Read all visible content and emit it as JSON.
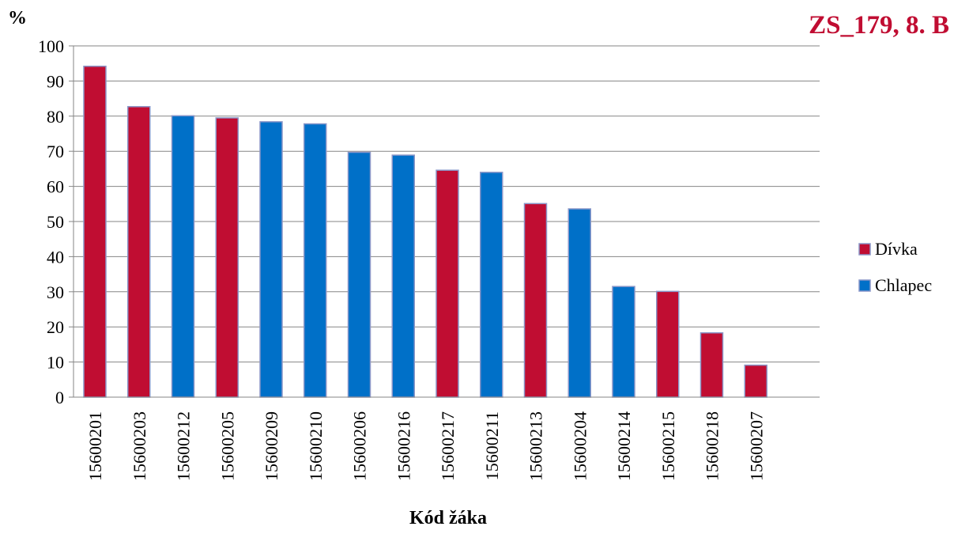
{
  "chart_data": {
    "type": "bar",
    "title": "ZS_179, 8. B",
    "xlabel": "Kód žáka",
    "ylabel": "%",
    "ylim": [
      0,
      100
    ],
    "yticks": [
      0,
      10,
      20,
      30,
      40,
      50,
      60,
      70,
      80,
      90,
      100
    ],
    "grid": true,
    "legend_position": "right",
    "categories": [
      "15600201",
      "15600203",
      "15600212",
      "15600205",
      "15600209",
      "15600210",
      "15600206",
      "15600216",
      "15600217",
      "15600211",
      "15600213",
      "15600204",
      "15600214",
      "15600215",
      "15600218",
      "15600207"
    ],
    "values": [
      94.2,
      82.7,
      80.1,
      79.5,
      78.4,
      77.8,
      69.7,
      68.9,
      64.6,
      64.0,
      55.1,
      53.6,
      31.5,
      30.1,
      18.3,
      9.1
    ],
    "groups": [
      "Dívka",
      "Dívka",
      "Chlapec",
      "Dívka",
      "Chlapec",
      "Chlapec",
      "Chlapec",
      "Chlapec",
      "Dívka",
      "Chlapec",
      "Dívka",
      "Chlapec",
      "Chlapec",
      "Dívka",
      "Dívka",
      "Dívka"
    ],
    "legend": [
      {
        "name": "Dívka",
        "color": "#c00d32"
      },
      {
        "name": "Chlapec",
        "color": "#0070c8"
      }
    ],
    "bar_border_color": "#8a96c8"
  }
}
